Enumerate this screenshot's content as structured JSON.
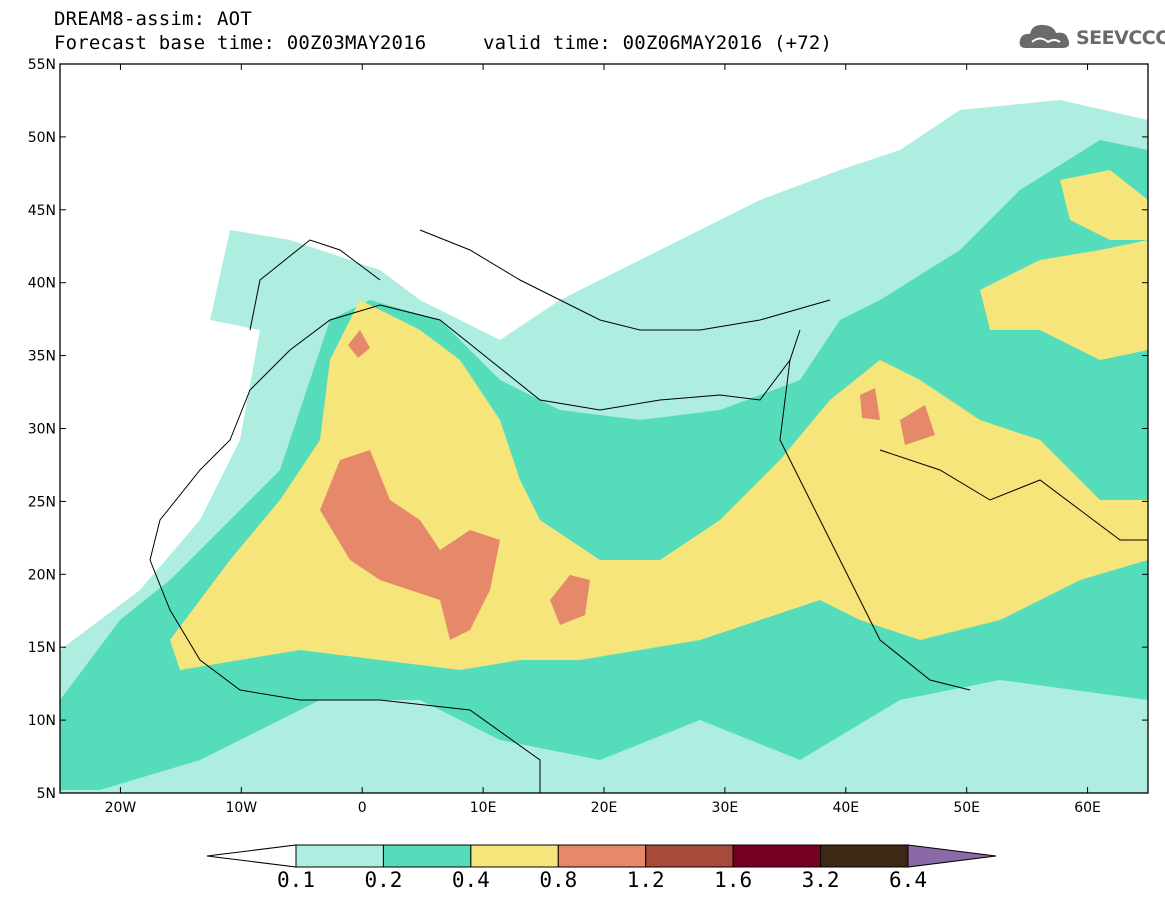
{
  "header": {
    "line1": "DREAM8-assim: AOT",
    "base_time": "Forecast base time: 00Z03MAY2016",
    "valid_time": "valid time: 00Z06MAY2016 (+72)"
  },
  "logo": {
    "text": "SEEVCCC",
    "icon": "cloud-icon"
  },
  "map": {
    "lat_labels": [
      "55N",
      "50N",
      "45N",
      "40N",
      "35N",
      "30N",
      "25N",
      "20N",
      "15N",
      "10N",
      "5N"
    ],
    "lon_labels": [
      "20W",
      "10W",
      "0",
      "10E",
      "20E",
      "30E",
      "40E",
      "50E",
      "60E"
    ],
    "lat_values": [
      55,
      50,
      45,
      40,
      35,
      30,
      25,
      20,
      15,
      10,
      5
    ],
    "lon_values": [
      -20,
      -10,
      0,
      10,
      20,
      30,
      40,
      50,
      60
    ],
    "lon_range": [
      -25,
      65
    ],
    "lat_range": [
      5,
      55
    ]
  },
  "legend": {
    "thresholds": [
      "0.1",
      "0.2",
      "0.4",
      "0.8",
      "1.2",
      "1.6",
      "3.2",
      "6.4"
    ],
    "colors": [
      "#aeeee0",
      "#55ddbb",
      "#f6e57a",
      "#e6886a",
      "#a64a3a",
      "#770022",
      "#3d2814"
    ],
    "below_color": "#ffffff",
    "above_color": "#8a6aa6"
  }
}
